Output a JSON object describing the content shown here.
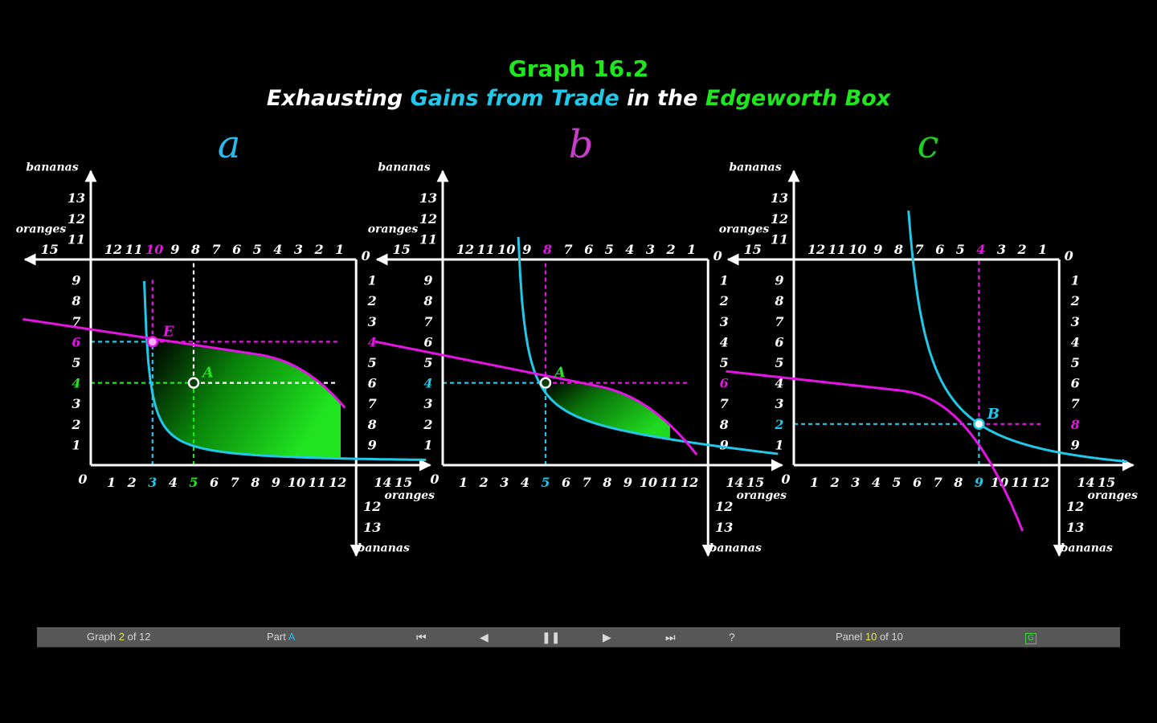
{
  "header": {
    "graph_title": "Graph 16.2",
    "subtitle_parts": [
      {
        "text": "Exhausting ",
        "color": "#ffffff"
      },
      {
        "text": "Gains from Trade",
        "color": "#22c8e8"
      },
      {
        "text": " in the ",
        "color": "#ffffff"
      },
      {
        "text": "Edgeworth Box",
        "color": "#1fe61f"
      }
    ]
  },
  "colors": {
    "cyan": "#22c8e8",
    "magenta": "#e414e4",
    "green": "#1fe61f",
    "white": "#ffffff",
    "background": "#000000"
  },
  "axis_labels": {
    "bananas": "bananas",
    "oranges": "oranges"
  },
  "panels": [
    {
      "letter": "a",
      "letter_color": "#2bb8ea",
      "point_label": "A",
      "left_highlights": [
        {
          "label": "6",
          "color": "#e414e4"
        },
        {
          "label": "4",
          "color": "#1fe61f"
        }
      ],
      "bottom_highlights": [
        {
          "label": "3",
          "color": "#22c8e8"
        },
        {
          "label": "5",
          "color": "#1fe61f"
        }
      ],
      "top_highlights": [
        {
          "label": "10",
          "color": "#e414e4"
        }
      ],
      "right_highlights": [
        {
          "label": "4",
          "color": "#e414e4"
        }
      ]
    },
    {
      "letter": "b",
      "letter_color": "#c93cc9",
      "point_label": "A",
      "left_highlights": [
        {
          "label": "4",
          "color": "#22c8e8"
        }
      ],
      "bottom_highlights": [
        {
          "label": "5",
          "color": "#22c8e8"
        }
      ],
      "top_highlights": [
        {
          "label": "8",
          "color": "#e414e4"
        }
      ],
      "right_highlights": [
        {
          "label": "6",
          "color": "#e414e4"
        }
      ]
    },
    {
      "letter": "c",
      "letter_color": "#1fcc1f",
      "point_label": "B",
      "left_highlights": [
        {
          "label": "2",
          "color": "#22c8e8"
        }
      ],
      "bottom_highlights": [
        {
          "label": "9",
          "color": "#22c8e8"
        }
      ],
      "top_highlights": [
        {
          "label": "4",
          "color": "#e414e4"
        }
      ],
      "right_highlights": [
        {
          "label": "8",
          "color": "#e414e4"
        }
      ]
    }
  ],
  "points": {
    "E_label": "E"
  },
  "nav": {
    "graph_prefix": "Graph ",
    "graph_num": "2",
    "graph_suffix": " of 12",
    "part_prefix": "Part ",
    "part_value": "A",
    "first_icon": "skip-to-start-icon",
    "prev_icon": "previous-icon",
    "pause_icon": "pause-icon",
    "next_icon": "next-icon",
    "last_icon": "skip-to-end-icon",
    "help_label": "?",
    "panel_prefix": "Panel ",
    "panel_num": "10",
    "panel_suffix": " of 10",
    "g_label": "G"
  }
}
